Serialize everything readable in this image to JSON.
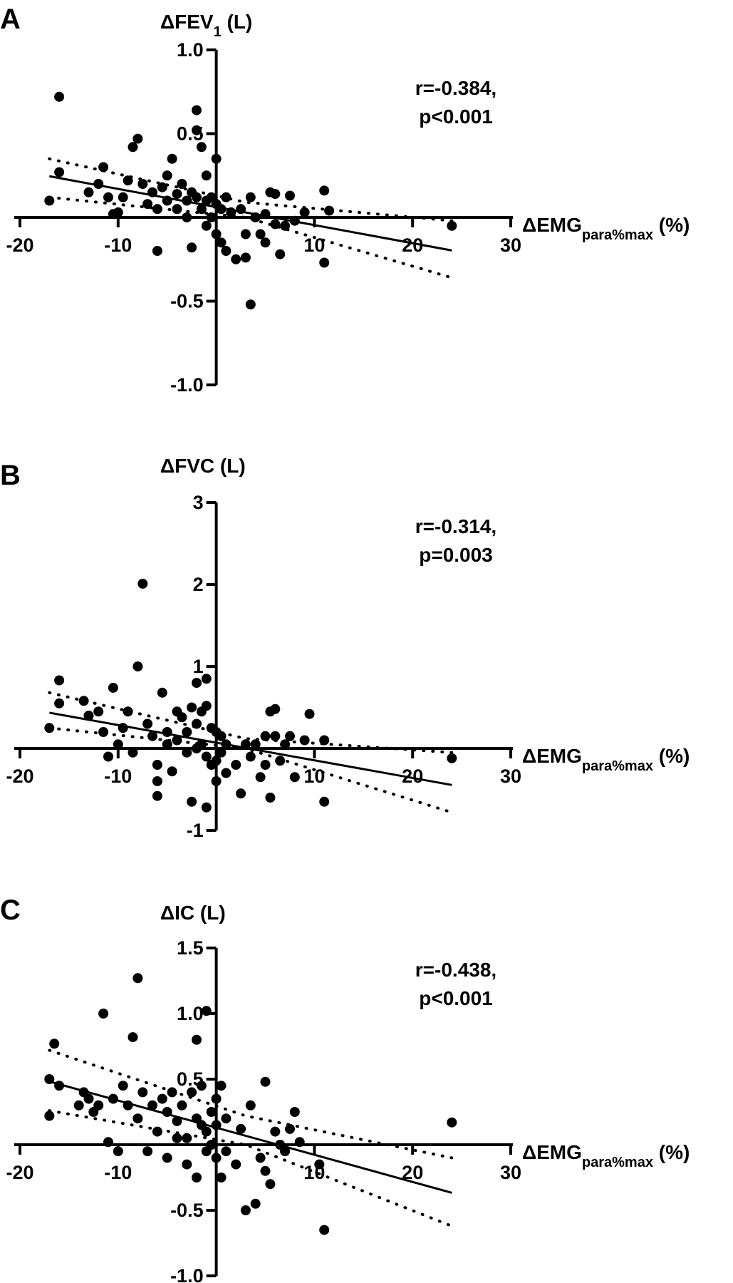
{
  "chart_data": [
    {
      "type": "scatter",
      "panel": "A",
      "ylabel": "ΔFEV",
      "ylabel_sub": "1",
      "ylabel_unit": " (L)",
      "xlabel": "ΔEMG",
      "xlabel_sub": "para%max",
      "xlabel_unit": " (%)",
      "stat_r": "r=-0.384,",
      "stat_p": "p<0.001",
      "xlim": [
        -20,
        30
      ],
      "ylim": [
        -1.0,
        1.0
      ],
      "xticks": [
        -20,
        -10,
        10,
        20,
        30
      ],
      "yticks": [
        1.0,
        0.5,
        -0.5,
        -1.0
      ],
      "ytick_labels": [
        "1.0",
        "0.5",
        "-0.5",
        "-1.0"
      ],
      "fit": {
        "slope": -0.0108,
        "intercept": 0.062,
        "x_range": [
          -17,
          24
        ]
      },
      "ci_upper": [
        [
          -17,
          0.35
        ],
        [
          3,
          0.09
        ],
        [
          24,
          -0.02
        ]
      ],
      "ci_lower": [
        [
          -17,
          0.12
        ],
        [
          3,
          0.0
        ],
        [
          24,
          -0.36
        ]
      ],
      "points": [
        [
          -16,
          0.72
        ],
        [
          -17,
          0.1
        ],
        [
          -16,
          0.27
        ],
        [
          -13,
          0.15
        ],
        [
          -12,
          0.2
        ],
        [
          -11.5,
          0.3
        ],
        [
          -11,
          0.12
        ],
        [
          -10.5,
          0.02
        ],
        [
          -10,
          0.03
        ],
        [
          -9.5,
          0.12
        ],
        [
          -9,
          0.22
        ],
        [
          -8.5,
          0.42
        ],
        [
          -8,
          0.47
        ],
        [
          -7.5,
          0.2
        ],
        [
          -7,
          0.08
        ],
        [
          -6.5,
          0.15
        ],
        [
          -6,
          0.05
        ],
        [
          -6,
          -0.2
        ],
        [
          -5.5,
          0.18
        ],
        [
          -5,
          0.25
        ],
        [
          -5,
          0.1
        ],
        [
          -4.5,
          0.35
        ],
        [
          -4,
          0.14
        ],
        [
          -4,
          0.05
        ],
        [
          -3.5,
          0.2
        ],
        [
          -3,
          0.1
        ],
        [
          -3,
          0.0
        ],
        [
          -2.5,
          0.15
        ],
        [
          -2,
          0.64
        ],
        [
          -2,
          0.52
        ],
        [
          -2,
          0.12
        ],
        [
          -2.5,
          -0.18
        ],
        [
          -1.5,
          0.42
        ],
        [
          -1.5,
          0.05
        ],
        [
          -1,
          0.25
        ],
        [
          -1,
          0.1
        ],
        [
          -1,
          -0.05
        ],
        [
          -0.5,
          0.12
        ],
        [
          -0.5,
          0.0
        ],
        [
          0,
          0.35
        ],
        [
          0,
          0.08
        ],
        [
          0,
          -0.1
        ],
        [
          0.5,
          0.05
        ],
        [
          0.5,
          -0.15
        ],
        [
          1,
          0.12
        ],
        [
          1,
          -0.2
        ],
        [
          1.5,
          0.03
        ],
        [
          2,
          -0.25
        ],
        [
          2.5,
          0.05
        ],
        [
          3,
          -0.24
        ],
        [
          3,
          -0.1
        ],
        [
          3.5,
          0.12
        ],
        [
          3.5,
          -0.52
        ],
        [
          4,
          0.0
        ],
        [
          4.5,
          -0.1
        ],
        [
          5,
          0.02
        ],
        [
          5,
          -0.15
        ],
        [
          5.5,
          0.15
        ],
        [
          6,
          0.14
        ],
        [
          6,
          -0.04
        ],
        [
          6.5,
          -0.22
        ],
        [
          7,
          -0.05
        ],
        [
          7.5,
          0.13
        ],
        [
          8,
          -0.02
        ],
        [
          9,
          0.03
        ],
        [
          11,
          0.16
        ],
        [
          11,
          -0.27
        ],
        [
          11.5,
          0.04
        ],
        [
          24,
          -0.05
        ]
      ]
    },
    {
      "type": "scatter",
      "panel": "B",
      "ylabel": "ΔFVC",
      "ylabel_sub": "",
      "ylabel_unit": " (L)",
      "xlabel": "ΔEMG",
      "xlabel_sub": "para%max",
      "xlabel_unit": " (%)",
      "stat_r": "r=-0.314,",
      "stat_p": "p=0.003",
      "xlim": [
        -20,
        30
      ],
      "ylim": [
        -1,
        3
      ],
      "xticks": [
        -20,
        -10,
        10,
        20,
        30
      ],
      "yticks": [
        3,
        2,
        1,
        -1
      ],
      "ytick_labels": [
        "3",
        "2",
        "1",
        "-1"
      ],
      "fit": {
        "slope": -0.0215,
        "intercept": 0.07,
        "x_range": [
          -17,
          24
        ]
      },
      "ci_upper": [
        [
          -17,
          0.68
        ],
        [
          3,
          0.12
        ],
        [
          24,
          -0.05
        ]
      ],
      "ci_lower": [
        [
          -17,
          0.25
        ],
        [
          3,
          0.0
        ],
        [
          24,
          -0.78
        ]
      ],
      "points": [
        [
          -16,
          0.83
        ],
        [
          -17,
          0.25
        ],
        [
          -16,
          0.55
        ],
        [
          -13.5,
          0.58
        ],
        [
          -13,
          0.4
        ],
        [
          -12,
          0.45
        ],
        [
          -11.5,
          0.2
        ],
        [
          -11,
          -0.1
        ],
        [
          -10.5,
          0.74
        ],
        [
          -10,
          0.05
        ],
        [
          -9.5,
          0.25
        ],
        [
          -9,
          0.45
        ],
        [
          -8.5,
          -0.05
        ],
        [
          -8,
          1.0
        ],
        [
          -7.5,
          2.01
        ],
        [
          -7,
          0.3
        ],
        [
          -6.5,
          0.15
        ],
        [
          -6,
          -0.2
        ],
        [
          -6,
          -0.4
        ],
        [
          -6,
          -0.58
        ],
        [
          -5.5,
          0.68
        ],
        [
          -5,
          0.2
        ],
        [
          -5,
          0.05
        ],
        [
          -4.5,
          -0.28
        ],
        [
          -4,
          0.45
        ],
        [
          -4,
          0.1
        ],
        [
          -3.5,
          0.38
        ],
        [
          -3,
          0.2
        ],
        [
          -3,
          -0.05
        ],
        [
          -2.5,
          0.5
        ],
        [
          -2.5,
          -0.65
        ],
        [
          -2,
          0.8
        ],
        [
          -2,
          0.3
        ],
        [
          -2,
          0.0
        ],
        [
          -1.5,
          0.45
        ],
        [
          -1.5,
          0.05
        ],
        [
          -1,
          0.85
        ],
        [
          -1,
          0.52
        ],
        [
          -1,
          -0.1
        ],
        [
          -1,
          -0.72
        ],
        [
          -0.5,
          0.25
        ],
        [
          -0.5,
          -0.2
        ],
        [
          0,
          0.2
        ],
        [
          0,
          -0.15
        ],
        [
          0,
          -0.4
        ],
        [
          0.5,
          0.15
        ],
        [
          0.5,
          -0.05
        ],
        [
          1,
          0.05
        ],
        [
          1,
          -0.3
        ],
        [
          2,
          -0.2
        ],
        [
          2.5,
          -0.55
        ],
        [
          3,
          0.05
        ],
        [
          3.5,
          -0.1
        ],
        [
          4,
          0.05
        ],
        [
          4.5,
          -0.35
        ],
        [
          5,
          0.15
        ],
        [
          5,
          -0.2
        ],
        [
          5.5,
          0.45
        ],
        [
          5.5,
          -0.6
        ],
        [
          6,
          0.48
        ],
        [
          6,
          0.15
        ],
        [
          6.5,
          -0.15
        ],
        [
          7,
          0.05
        ],
        [
          7.5,
          0.15
        ],
        [
          8,
          -0.35
        ],
        [
          9,
          0.1
        ],
        [
          9.5,
          0.42
        ],
        [
          11,
          0.1
        ],
        [
          11,
          -0.65
        ],
        [
          24,
          -0.12
        ]
      ]
    },
    {
      "type": "scatter",
      "panel": "C",
      "ylabel": "ΔIC",
      "ylabel_sub": "",
      "ylabel_unit": " (L)",
      "xlabel": "ΔEMG",
      "xlabel_sub": "para%max",
      "xlabel_unit": " (%)",
      "stat_r": "r=-0.438,",
      "stat_p": "p<0.001",
      "xlim": [
        -20,
        30
      ],
      "ylim": [
        -1.0,
        1.5
      ],
      "xticks": [
        -20,
        -10,
        10,
        20,
        30
      ],
      "yticks": [
        1.5,
        1.0,
        0.5,
        -0.5,
        -1.0
      ],
      "ytick_labels": [
        "1.5",
        "1.0",
        "0.5",
        "-0.5",
        "-1.0"
      ],
      "fit": {
        "slope": -0.0207,
        "intercept": 0.13,
        "x_range": [
          -17,
          24
        ]
      },
      "ci_upper": [
        [
          -17,
          0.72
        ],
        [
          3,
          0.22
        ],
        [
          24,
          -0.1
        ]
      ],
      "ci_lower": [
        [
          -17,
          0.26
        ],
        [
          3,
          0.0
        ],
        [
          24,
          -0.62
        ]
      ],
      "points": [
        [
          -17,
          0.5
        ],
        [
          -16.5,
          0.77
        ],
        [
          -16,
          0.45
        ],
        [
          -17,
          0.22
        ],
        [
          -14,
          0.3
        ],
        [
          -13.5,
          0.4
        ],
        [
          -13,
          0.35
        ],
        [
          -12.5,
          0.25
        ],
        [
          -12,
          0.3
        ],
        [
          -11.5,
          1.0
        ],
        [
          -11,
          0.02
        ],
        [
          -10.5,
          0.35
        ],
        [
          -10,
          -0.05
        ],
        [
          -9.5,
          0.45
        ],
        [
          -9,
          0.3
        ],
        [
          -8.5,
          0.82
        ],
        [
          -8,
          1.27
        ],
        [
          -8,
          0.2
        ],
        [
          -7.5,
          0.4
        ],
        [
          -7,
          -0.05
        ],
        [
          -6.5,
          0.3
        ],
        [
          -6,
          0.1
        ],
        [
          -5.5,
          0.35
        ],
        [
          -5,
          0.25
        ],
        [
          -5,
          -0.1
        ],
        [
          -4.5,
          0.4
        ],
        [
          -4,
          0.18
        ],
        [
          -4,
          0.05
        ],
        [
          -3.5,
          0.3
        ],
        [
          -3,
          0.05
        ],
        [
          -3,
          -0.15
        ],
        [
          -2.5,
          0.4
        ],
        [
          -2,
          0.8
        ],
        [
          -2,
          0.2
        ],
        [
          -2,
          -0.25
        ],
        [
          -1.5,
          0.45
        ],
        [
          -1.5,
          0.15
        ],
        [
          -1,
          1.02
        ],
        [
          -1,
          0.1
        ],
        [
          -1,
          -0.05
        ],
        [
          -0.5,
          0.25
        ],
        [
          -0.5,
          0.0
        ],
        [
          0,
          0.35
        ],
        [
          0,
          0.15
        ],
        [
          0,
          -0.1
        ],
        [
          0.5,
          0.45
        ],
        [
          0.5,
          -0.25
        ],
        [
          1,
          0.2
        ],
        [
          1,
          -0.05
        ],
        [
          2,
          -0.15
        ],
        [
          2.5,
          0.12
        ],
        [
          3,
          -0.5
        ],
        [
          3.5,
          0.3
        ],
        [
          4,
          -0.45
        ],
        [
          4.5,
          -0.1
        ],
        [
          5,
          0.48
        ],
        [
          5,
          -0.2
        ],
        [
          5.5,
          -0.3
        ],
        [
          6,
          0.1
        ],
        [
          6.5,
          0.0
        ],
        [
          7,
          -0.05
        ],
        [
          7.5,
          0.12
        ],
        [
          8,
          0.25
        ],
        [
          8.5,
          0.02
        ],
        [
          10.5,
          -0.15
        ],
        [
          11,
          -0.65
        ],
        [
          24,
          0.17
        ]
      ]
    }
  ]
}
